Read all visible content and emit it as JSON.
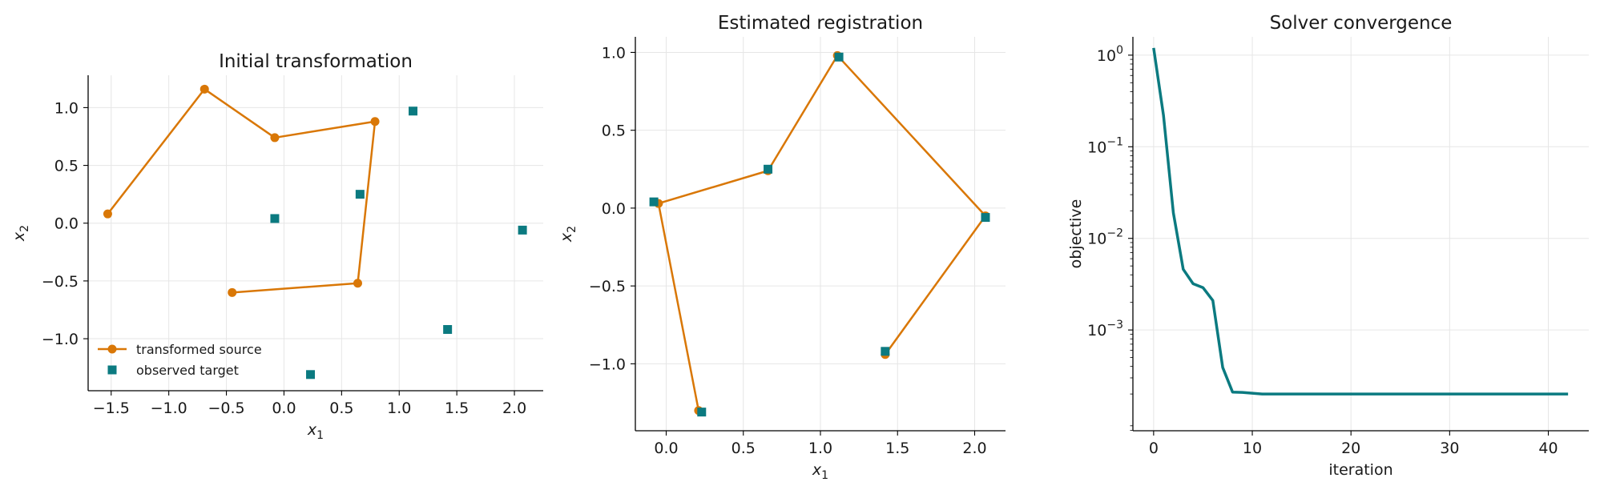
{
  "colors": {
    "source": "#d97706",
    "target": "#0b7a80",
    "grid": "#e6e6e6"
  },
  "chart_data": [
    {
      "type": "scatter",
      "title": "Initial transformation",
      "xlabel": "x₁",
      "ylabel": "x₂",
      "xlim": [
        -1.7,
        2.25
      ],
      "ylim": [
        -1.45,
        1.28
      ],
      "xticks": [
        -1.5,
        -1.0,
        -0.5,
        0.0,
        0.5,
        1.0,
        1.5,
        2.0
      ],
      "xtick_labels": [
        "−1.5",
        "−1.0",
        "−0.5",
        "0.0",
        "0.5",
        "1.0",
        "1.5",
        "2.0"
      ],
      "yticks": [
        1.0,
        0.5,
        0.0,
        -0.5,
        -1.0
      ],
      "ytick_labels": [
        "1.0",
        "0.5",
        "0.0",
        "−0.5",
        "−1.0"
      ],
      "grid": true,
      "legend": {
        "placement": "lower-left",
        "entries": [
          {
            "label": "transformed source",
            "kind": "line-circle"
          },
          {
            "label": "observed target",
            "kind": "square"
          }
        ]
      },
      "series": [
        {
          "name": "transformed source",
          "kind": "line-circle",
          "x": [
            -0.45,
            0.64,
            0.79,
            -0.08,
            -0.69,
            -1.53
          ],
          "y": [
            -0.6,
            -0.52,
            0.88,
            0.74,
            1.16,
            0.08
          ]
        },
        {
          "name": "observed target",
          "kind": "square",
          "x": [
            1.12,
            0.66,
            -0.08,
            2.07,
            1.42,
            0.23
          ],
          "y": [
            0.97,
            0.25,
            0.04,
            -0.06,
            -0.92,
            -1.31
          ]
        }
      ]
    },
    {
      "type": "scatter",
      "title": "Estimated registration",
      "xlabel": "x₁",
      "ylabel": "x₂",
      "xlim": [
        -0.2,
        2.2
      ],
      "ylim": [
        -1.43,
        1.1
      ],
      "xticks": [
        0.0,
        0.5,
        1.0,
        1.5,
        2.0
      ],
      "xtick_labels": [
        "0.0",
        "0.5",
        "1.0",
        "1.5",
        "2.0"
      ],
      "yticks": [
        1.0,
        0.5,
        0.0,
        -0.5,
        -1.0
      ],
      "ytick_labels": [
        "1.0",
        "0.5",
        "0.0",
        "−0.5",
        "−1.0"
      ],
      "grid": true,
      "series": [
        {
          "kind": "line-circle",
          "x": [
            1.42,
            2.07,
            1.11,
            0.66,
            -0.05,
            0.21
          ],
          "y": [
            -0.94,
            -0.05,
            0.98,
            0.24,
            0.03,
            -1.3
          ]
        },
        {
          "kind": "square",
          "x": [
            1.12,
            0.66,
            -0.08,
            2.07,
            1.42,
            0.23
          ],
          "y": [
            0.97,
            0.25,
            0.04,
            -0.06,
            -0.92,
            -1.31
          ]
        }
      ]
    },
    {
      "type": "line",
      "title": "Solver convergence",
      "xlabel": "iteration",
      "ylabel": "objective",
      "xlim": [
        -2.1,
        44.1
      ],
      "ylim_log10": [
        -4.1,
        0.2
      ],
      "xticks": [
        0,
        10,
        20,
        30,
        40
      ],
      "xtick_labels": [
        "0",
        "10",
        "20",
        "30",
        "40"
      ],
      "yticks_log10": [
        0,
        -1,
        -2,
        -3
      ],
      "ytick_base": "10",
      "ytick_exponents": [
        "0",
        "−1",
        "−2",
        "−3"
      ],
      "log_scale_y": true,
      "grid": true,
      "series": [
        {
          "kind": "line",
          "x": [
            0,
            1,
            2,
            3,
            4,
            5,
            6,
            7,
            8,
            9,
            10,
            11,
            12,
            15,
            20,
            25,
            30,
            35,
            40,
            42
          ],
          "y": [
            1.2,
            0.22,
            0.019,
            0.0046,
            0.0032,
            0.0029,
            0.0021,
            0.00039,
            0.00021,
            0.000208,
            0.000204,
            0.0002,
            0.0002,
            0.0002,
            0.0002,
            0.0002,
            0.0002,
            0.0002,
            0.0002,
            0.0002
          ]
        }
      ]
    }
  ]
}
